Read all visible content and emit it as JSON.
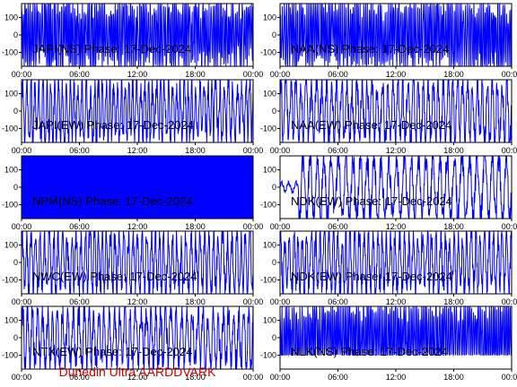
{
  "footer": {
    "text": "Dunedin Ultra AARDDVARK",
    "color": "#cc0000"
  },
  "style": {
    "trace_color": "#0000ff",
    "axis_color": "#000000",
    "background": "#ffffff"
  },
  "chart_data": [
    {
      "type": "line",
      "title": "JAPI(NS) Phase: 17-Dec-2024",
      "x_ticks": [
        "00:00",
        "06:00",
        "12:00",
        "18:00",
        "00:00"
      ],
      "y_ticks": [
        "100",
        "0",
        "-100"
      ],
      "ylim": [
        -180,
        180
      ],
      "xlim_hours": [
        0,
        24
      ],
      "series": [
        {
          "values_summary": "dense noisy phase trace spanning about -180 to 180 deg for the whole day"
        }
      ]
    },
    {
      "type": "line",
      "title": "NAA(NS) Phase: 17-Dec-2024",
      "x_ticks": [
        "00:00",
        "06:00",
        "12:00",
        "18:00",
        "00:00"
      ],
      "y_ticks": [
        "100",
        "0",
        "-100"
      ],
      "ylim": [
        -180,
        180
      ],
      "xlim_hours": [
        0,
        24
      ],
      "series": [
        {
          "values_summary": "dense noisy phase trace spanning about -180 to 180 deg for the whole day"
        }
      ]
    },
    {
      "type": "line",
      "title": "JAPI(EW) Phase: 17-Dec-2024",
      "x_ticks": [
        "00:00",
        "06:00",
        "12:00",
        "18:00",
        "00:00"
      ],
      "y_ticks": [
        "100",
        "0",
        "-100"
      ],
      "ylim": [
        -180,
        180
      ],
      "xlim_hours": [
        0,
        24
      ],
      "series": [
        {
          "values_summary": "oscillating phase trace between about -180 and 180 deg"
        }
      ]
    },
    {
      "type": "line",
      "title": "NAA(EW) Phase: 17-Dec-2024",
      "x_ticks": [
        "00:00",
        "06:00",
        "12:00",
        "18:00",
        "00:00"
      ],
      "y_ticks": [
        "100",
        "0",
        "-100"
      ],
      "ylim": [
        -180,
        180
      ],
      "xlim_hours": [
        0,
        24
      ],
      "series": [
        {
          "values_summary": "oscillating phase trace between about -180 and 180 deg"
        }
      ]
    },
    {
      "type": "line",
      "title": "NPM(NS) Phase: 17-Dec-2024",
      "x_ticks": [
        "00:00",
        "06:00",
        "12:00",
        "18:00",
        "00:00"
      ],
      "y_ticks": [
        "100",
        "0",
        "-100"
      ],
      "ylim": [
        -180,
        180
      ],
      "xlim_hours": [
        0,
        24
      ],
      "series": [
        {
          "values_summary": "near-solid fill from -180 to 180 deg (very rapid wrapping)"
        }
      ]
    },
    {
      "type": "line",
      "title": "NDK(EW) Phase: 17-Dec-2024",
      "x_ticks": [
        "00:00",
        "06:00",
        "12:00",
        "18:00",
        "00:00"
      ],
      "y_ticks": [
        "100",
        "0",
        "-100"
      ],
      "ylim": [
        -180,
        180
      ],
      "xlim_hours": [
        0,
        24
      ],
      "series": [
        {
          "values_summary": "slow wrapping sawtooth-like trace with quieter start"
        }
      ]
    },
    {
      "type": "line",
      "title": "NWC(EW) Phase: 17-Dec-2024",
      "x_ticks": [
        "00:00",
        "06:00",
        "12:00",
        "18:00",
        "00:00"
      ],
      "y_ticks": [
        "100",
        "0",
        "-100"
      ],
      "ylim": [
        -180,
        180
      ],
      "xlim_hours": [
        0,
        24
      ],
      "series": [
        {
          "values_summary": "oscillating phase trace between about -180 and 180 deg"
        }
      ]
    },
    {
      "type": "line",
      "title": "NDK(EW) Phase: 17-Dec-2024",
      "x_ticks": [
        "00:00",
        "06:00",
        "12:00",
        "18:00",
        "00:00"
      ],
      "y_ticks": [
        "100",
        "0",
        "-100"
      ],
      "ylim": [
        -180,
        180
      ],
      "xlim_hours": [
        0,
        24
      ],
      "series": [
        {
          "values_summary": "oscillating phase trace between about -180 and 180 deg"
        }
      ]
    },
    {
      "type": "line",
      "title": "NTX(EW) Phase: 17-Dec-2024",
      "x_ticks": [
        "00:00",
        "06:00",
        "12:00",
        "18:00",
        "00:00"
      ],
      "y_ticks": [
        "100",
        "0",
        "-100"
      ],
      "ylim": [
        -180,
        180
      ],
      "xlim_hours": [
        0,
        24
      ],
      "series": [
        {
          "values_summary": "oscillating phase trace between about -180 and 180 deg"
        }
      ]
    },
    {
      "type": "line",
      "title": "NLK(NS) Phase: 17-Dec-2024",
      "x_ticks": [
        "00:00",
        "06:00",
        "12:00",
        "18:00",
        "00:00"
      ],
      "y_ticks": [
        "100",
        "0",
        "-100"
      ],
      "ylim": [
        -180,
        180
      ],
      "xlim_hours": [
        0,
        24
      ],
      "series": [
        {
          "values_summary": "dense trace, mostly between about -100 and 180 deg"
        }
      ]
    }
  ]
}
